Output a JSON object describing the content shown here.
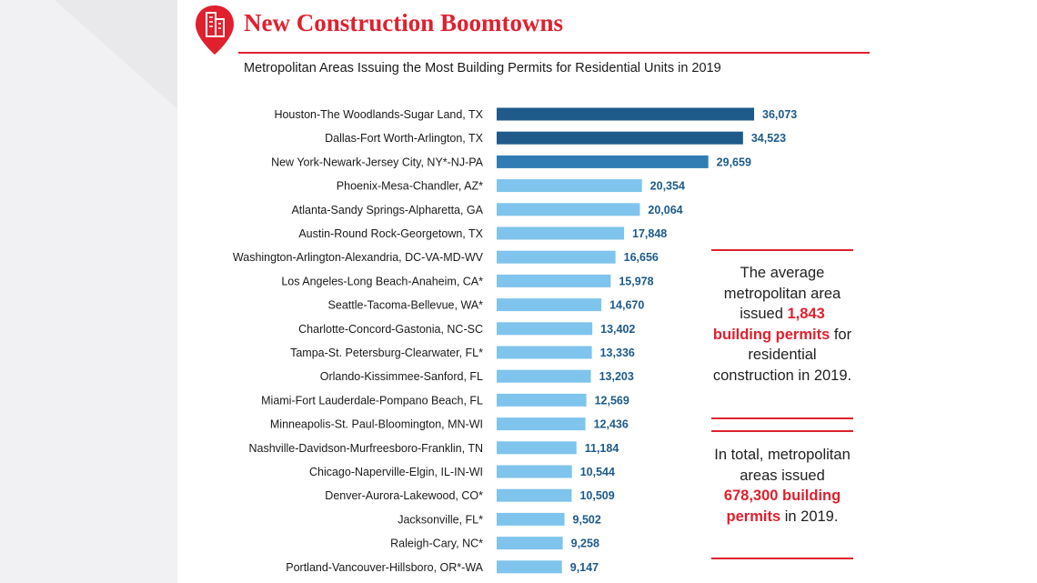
{
  "header": {
    "title": "New Construction Boomtowns",
    "subtitle": "Metropolitan Areas Issuing the Most Building Permits for Residential Units in 2019"
  },
  "colors": {
    "accent": "#e0202e",
    "bar_dark": "#1e5a8a",
    "bar_mid": "#2f7db3",
    "bar_light": "#7fc4ec",
    "value_text": "#1e5a8a"
  },
  "icons": {
    "logo": "location-pin-building-icon"
  },
  "chart_data": {
    "type": "bar",
    "orientation": "horizontal",
    "title": "Metropolitan Areas Issuing the Most Building Permits for Residential Units in 2019",
    "categories": [
      "Houston-The Woodlands-Sugar Land, TX",
      "Dallas-Fort Worth-Arlington, TX",
      "New York-Newark-Jersey City, NY*-NJ-PA",
      "Phoenix-Mesa-Chandler, AZ*",
      "Atlanta-Sandy Springs-Alpharetta, GA",
      "Austin-Round Rock-Georgetown, TX",
      "Washington-Arlington-Alexandria, DC-VA-MD-WV",
      "Los Angeles-Long Beach-Anaheim, CA*",
      "Seattle-Tacoma-Bellevue, WA*",
      "Charlotte-Concord-Gastonia, NC-SC",
      "Tampa-St. Petersburg-Clearwater, FL*",
      "Orlando-Kissimmee-Sanford, FL",
      "Miami-Fort Lauderdale-Pompano Beach, FL",
      "Minneapolis-St. Paul-Bloomington, MN-WI",
      "Nashville-Davidson-Murfreesboro-Franklin, TN",
      "Chicago-Naperville-Elgin, IL-IN-WI",
      "Denver-Aurora-Lakewood, CO*",
      "Jacksonville, FL*",
      "Raleigh-Cary, NC*",
      "Portland-Vancouver-Hillsboro, OR*-WA"
    ],
    "values": [
      36073,
      34523,
      29659,
      20354,
      20064,
      17848,
      16656,
      15978,
      14670,
      13402,
      13336,
      13203,
      12569,
      12436,
      11184,
      10544,
      10509,
      9502,
      9258,
      9147
    ],
    "value_labels": [
      "36,073",
      "34,523",
      "29,659",
      "20,354",
      "20,064",
      "17,848",
      "16,656",
      "15,978",
      "14,670",
      "13,402",
      "13,336",
      "13,203",
      "12,569",
      "12,436",
      "11,184",
      "10,544",
      "10,509",
      "9,502",
      "9,258",
      "9,147"
    ],
    "xlabel": "",
    "ylabel": "",
    "xlim": [
      0,
      36073
    ],
    "grid": false
  },
  "callouts": [
    {
      "pre": "The average metropolitan area issued ",
      "highlight": "1,843 building permits",
      "post": " for residential construction in 2019."
    },
    {
      "pre": "In total, metropolitan areas issued ",
      "highlight": "678,300 building permits",
      "post": " in 2019."
    }
  ]
}
